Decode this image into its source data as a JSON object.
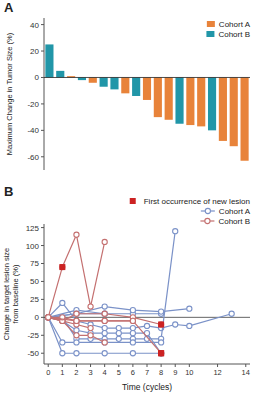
{
  "chart_data": [
    {
      "type": "bar",
      "title": "A",
      "categories": [
        null,
        null,
        null,
        null,
        null,
        null,
        null,
        null,
        null,
        null,
        null,
        null,
        null,
        null,
        null,
        null,
        null,
        null,
        null
      ],
      "series": [
        {
          "name": "Cohort A",
          "color": "#E8833A",
          "values": [
            null,
            null,
            1,
            null,
            -4,
            null,
            null,
            -12,
            null,
            -17,
            -30,
            -32,
            null,
            -36,
            -37,
            null,
            -48,
            -52,
            -63
          ]
        },
        {
          "name": "Cohort B",
          "color": "#2196A8",
          "values": [
            25,
            5,
            null,
            -2,
            null,
            -7,
            -9,
            null,
            -14,
            null,
            null,
            null,
            -35,
            null,
            null,
            -40,
            null,
            null,
            null
          ]
        }
      ],
      "ylim": [
        -70,
        45
      ],
      "yticks": [
        -60,
        -40,
        -20,
        0,
        20,
        40
      ],
      "ylabel": "Maximum Change in Tumor Size (%)",
      "legend": "upper right",
      "tick_labels": "y"
    },
    {
      "type": "line",
      "title": "B",
      "series": [
        {
          "name": "First occurrence of new lesion",
          "type": "scatter",
          "marker": "square",
          "color": "#CC2222",
          "x": [
            8,
            1,
            8,
            8
          ],
          "values": [
            -50,
            70,
            -10,
            -50
          ]
        },
        {
          "name": "Cohort A",
          "type": "line",
          "marker": "circle",
          "color": "#7B92C8",
          "x": [
            0,
            1,
            2,
            3,
            4,
            5,
            6,
            7,
            8,
            9,
            10,
            13
          ],
          "values": [
            0,
            20,
            -5,
            -10,
            -15,
            -15,
            -15,
            -12,
            -15,
            -10,
            -12,
            5
          ]
        },
        {
          "name": "Cohort A",
          "type": "line",
          "marker": "circle",
          "color": "#7B92C8",
          "x": [
            0,
            1,
            2,
            3,
            4,
            5,
            6,
            7,
            8,
            9
          ],
          "values": [
            0,
            0,
            -30,
            -30,
            -30,
            -30,
            -30,
            -30,
            -30,
            120
          ]
        },
        {
          "name": "Cohort A",
          "type": "line",
          "marker": "circle",
          "color": "#7B92C8",
          "x": [
            0,
            1,
            2,
            3,
            4,
            5,
            6,
            7,
            8
          ],
          "values": [
            0,
            -5,
            -18,
            -22,
            -22,
            -22,
            -22,
            -22,
            -50
          ]
        },
        {
          "name": "Cohort A",
          "type": "line",
          "marker": "circle",
          "color": "#7B92C8",
          "x": [
            0,
            1,
            2,
            4,
            6,
            8
          ],
          "values": [
            0,
            -50,
            -50,
            -50,
            -50,
            -50
          ]
        },
        {
          "name": "Cohort A",
          "type": "line",
          "marker": "circle",
          "color": "#7B92C8",
          "x": [
            0,
            2,
            4,
            6,
            8
          ],
          "values": [
            0,
            5,
            5,
            5,
            5
          ]
        },
        {
          "name": "Cohort A",
          "type": "line",
          "marker": "circle",
          "color": "#7B92C8",
          "x": [
            0,
            1,
            2,
            4,
            6,
            8
          ],
          "values": [
            0,
            -35,
            -35,
            -35,
            -35,
            -35
          ]
        },
        {
          "name": "Cohort A",
          "type": "line",
          "marker": "circle",
          "color": "#7B92C8",
          "x": [
            0,
            2,
            4
          ],
          "values": [
            0,
            10,
            5
          ]
        },
        {
          "name": "Cohort A",
          "type": "line",
          "marker": "circle",
          "color": "#7B92C8",
          "x": [
            0,
            2,
            4,
            6,
            8,
            10
          ],
          "values": [
            0,
            5,
            15,
            10,
            8,
            12
          ]
        },
        {
          "name": "Cohort B",
          "type": "line",
          "marker": "circle",
          "color": "#C47070",
          "x": [
            0,
            1,
            2,
            3,
            4
          ],
          "values": [
            0,
            70,
            115,
            15,
            105
          ]
        },
        {
          "name": "Cohort B",
          "type": "line",
          "marker": "circle",
          "color": "#C47070",
          "x": [
            0,
            1,
            2,
            3,
            4
          ],
          "values": [
            0,
            -5,
            -25,
            -25,
            -35
          ]
        },
        {
          "name": "Cohort B",
          "type": "line",
          "marker": "circle",
          "color": "#C47070",
          "x": [
            0,
            1,
            2,
            3
          ],
          "values": [
            0,
            -5,
            -10,
            -15
          ]
        },
        {
          "name": "Cohort B",
          "type": "line",
          "marker": "circle",
          "color": "#C47070",
          "x": [
            0,
            1,
            2,
            4,
            6,
            8
          ],
          "values": [
            0,
            -5,
            5,
            5,
            0,
            -10
          ]
        },
        {
          "name": "Cohort B",
          "type": "line",
          "marker": "circle",
          "color": "#C47070",
          "x": [
            0,
            1,
            2,
            4,
            6,
            8
          ],
          "values": [
            0,
            0,
            -5,
            -5,
            -5,
            -50
          ]
        },
        {
          "name": "Cohort B",
          "type": "line",
          "marker": "circle",
          "color": "#C47070",
          "x": [
            0,
            2,
            4,
            6
          ],
          "values": [
            0,
            -5,
            -5,
            -5
          ]
        }
      ],
      "xlim": [
        -0.3,
        14.3
      ],
      "xticks": [
        0,
        1,
        2,
        3,
        4,
        5,
        6,
        7,
        8,
        9,
        10,
        12,
        14
      ],
      "ylim": [
        -65,
        130
      ],
      "yticks": [
        -50,
        -25,
        0,
        25,
        50,
        75,
        100,
        125
      ],
      "xlabel": "Time (cycles)",
      "ylabel": "Change in target lesion size\nfrom baseline (%)",
      "legend": "top"
    }
  ]
}
